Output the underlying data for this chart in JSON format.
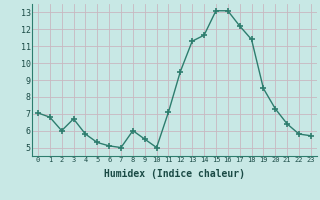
{
  "x": [
    0,
    1,
    2,
    3,
    4,
    5,
    6,
    7,
    8,
    9,
    10,
    11,
    12,
    13,
    14,
    15,
    16,
    17,
    18,
    19,
    20,
    21,
    22,
    23
  ],
  "y": [
    7.05,
    6.8,
    6.0,
    6.7,
    5.8,
    5.3,
    5.1,
    5.0,
    6.0,
    5.5,
    5.0,
    7.1,
    9.5,
    11.3,
    11.65,
    13.1,
    13.1,
    12.2,
    11.4,
    8.5,
    7.3,
    6.4,
    5.8,
    5.7
  ],
  "xlabel": "Humidex (Indice chaleur)",
  "xlim": [
    -0.5,
    23.5
  ],
  "ylim": [
    4.5,
    13.5
  ],
  "yticks": [
    5,
    6,
    7,
    8,
    9,
    10,
    11,
    12,
    13
  ],
  "xticks": [
    0,
    1,
    2,
    3,
    4,
    5,
    6,
    7,
    8,
    9,
    10,
    11,
    12,
    13,
    14,
    15,
    16,
    17,
    18,
    19,
    20,
    21,
    22,
    23
  ],
  "xtick_labels": [
    "0",
    "1",
    "2",
    "3",
    "4",
    "5",
    "6",
    "7",
    "8",
    "9",
    "10",
    "11",
    "12",
    "13",
    "14",
    "15",
    "16",
    "17",
    "18",
    "19",
    "20",
    "21",
    "22",
    "23"
  ],
  "line_color": "#2d7d6e",
  "bg_color": "#c8e8e5",
  "grid_color": "#c8b8c0",
  "axis_bg": "#c8e8e5"
}
